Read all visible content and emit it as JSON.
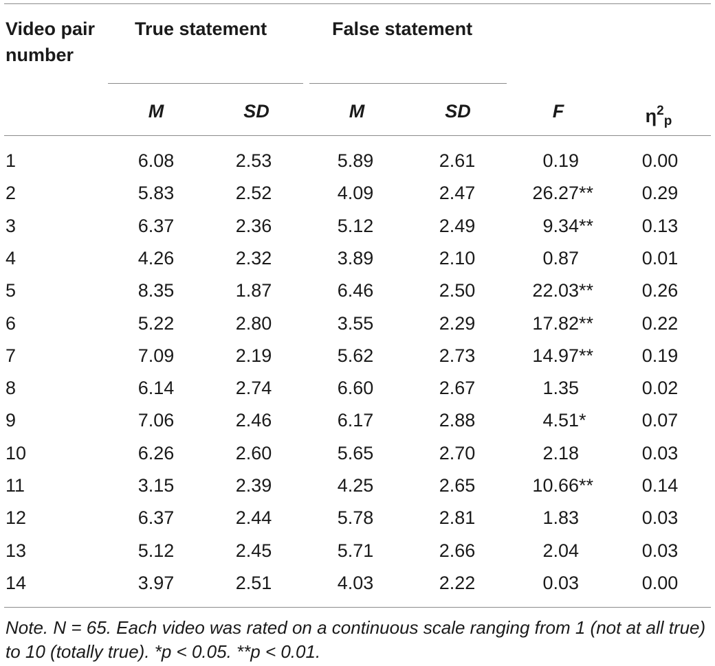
{
  "header": {
    "col_video": "Video pair number",
    "col_video_line1": "Video pair",
    "col_video_line2": "number",
    "group_true": "True statement",
    "group_false": "False statement",
    "sub_m": "M",
    "sub_sd": "SD",
    "sub_f": "F",
    "sub_eta_base": "η",
    "sub_eta_sup": "2",
    "sub_eta_sub": "p"
  },
  "rows": [
    {
      "pair": "1",
      "true_m": "6.08",
      "true_sd": "2.53",
      "false_m": "5.89",
      "false_sd": "2.61",
      "f_val": "0.19",
      "f_sig": "",
      "eta": "0.00"
    },
    {
      "pair": "2",
      "true_m": "5.83",
      "true_sd": "2.52",
      "false_m": "4.09",
      "false_sd": "2.47",
      "f_val": "26.27",
      "f_sig": "**",
      "eta": "0.29"
    },
    {
      "pair": "3",
      "true_m": "6.37",
      "true_sd": "2.36",
      "false_m": "5.12",
      "false_sd": "2.49",
      "f_val": "9.34",
      "f_sig": "**",
      "eta": "0.13"
    },
    {
      "pair": "4",
      "true_m": "4.26",
      "true_sd": "2.32",
      "false_m": "3.89",
      "false_sd": "2.10",
      "f_val": "0.87",
      "f_sig": "",
      "eta": "0.01"
    },
    {
      "pair": "5",
      "true_m": "8.35",
      "true_sd": "1.87",
      "false_m": "6.46",
      "false_sd": "2.50",
      "f_val": "22.03",
      "f_sig": "**",
      "eta": "0.26"
    },
    {
      "pair": "6",
      "true_m": "5.22",
      "true_sd": "2.80",
      "false_m": "3.55",
      "false_sd": "2.29",
      "f_val": "17.82",
      "f_sig": "**",
      "eta": "0.22"
    },
    {
      "pair": "7",
      "true_m": "7.09",
      "true_sd": "2.19",
      "false_m": "5.62",
      "false_sd": "2.73",
      "f_val": "14.97",
      "f_sig": "**",
      "eta": "0.19"
    },
    {
      "pair": "8",
      "true_m": "6.14",
      "true_sd": "2.74",
      "false_m": "6.60",
      "false_sd": "2.67",
      "f_val": "1.35",
      "f_sig": "",
      "eta": "0.02"
    },
    {
      "pair": "9",
      "true_m": "7.06",
      "true_sd": "2.46",
      "false_m": "6.17",
      "false_sd": "2.88",
      "f_val": "4.51",
      "f_sig": "*",
      "eta": "0.07"
    },
    {
      "pair": "10",
      "true_m": "6.26",
      "true_sd": "2.60",
      "false_m": "5.65",
      "false_sd": "2.70",
      "f_val": "2.18",
      "f_sig": "",
      "eta": "0.03"
    },
    {
      "pair": "11",
      "true_m": "3.15",
      "true_sd": "2.39",
      "false_m": "4.25",
      "false_sd": "2.65",
      "f_val": "10.66",
      "f_sig": "**",
      "eta": "0.14"
    },
    {
      "pair": "12",
      "true_m": "6.37",
      "true_sd": "2.44",
      "false_m": "5.78",
      "false_sd": "2.81",
      "f_val": "1.83",
      "f_sig": "",
      "eta": "0.03"
    },
    {
      "pair": "13",
      "true_m": "5.12",
      "true_sd": "2.45",
      "false_m": "5.71",
      "false_sd": "2.66",
      "f_val": "2.04",
      "f_sig": "",
      "eta": "0.03"
    },
    {
      "pair": "14",
      "true_m": "3.97",
      "true_sd": "2.51",
      "false_m": "4.03",
      "false_sd": "2.22",
      "f_val": "0.03",
      "f_sig": "",
      "eta": "0.00"
    }
  ],
  "note": "Note. N = 65. Each video was rated on a continuous scale ranging from 1 (not at all true) to 10 (totally true). *p < 0.05. **p < 0.01."
}
